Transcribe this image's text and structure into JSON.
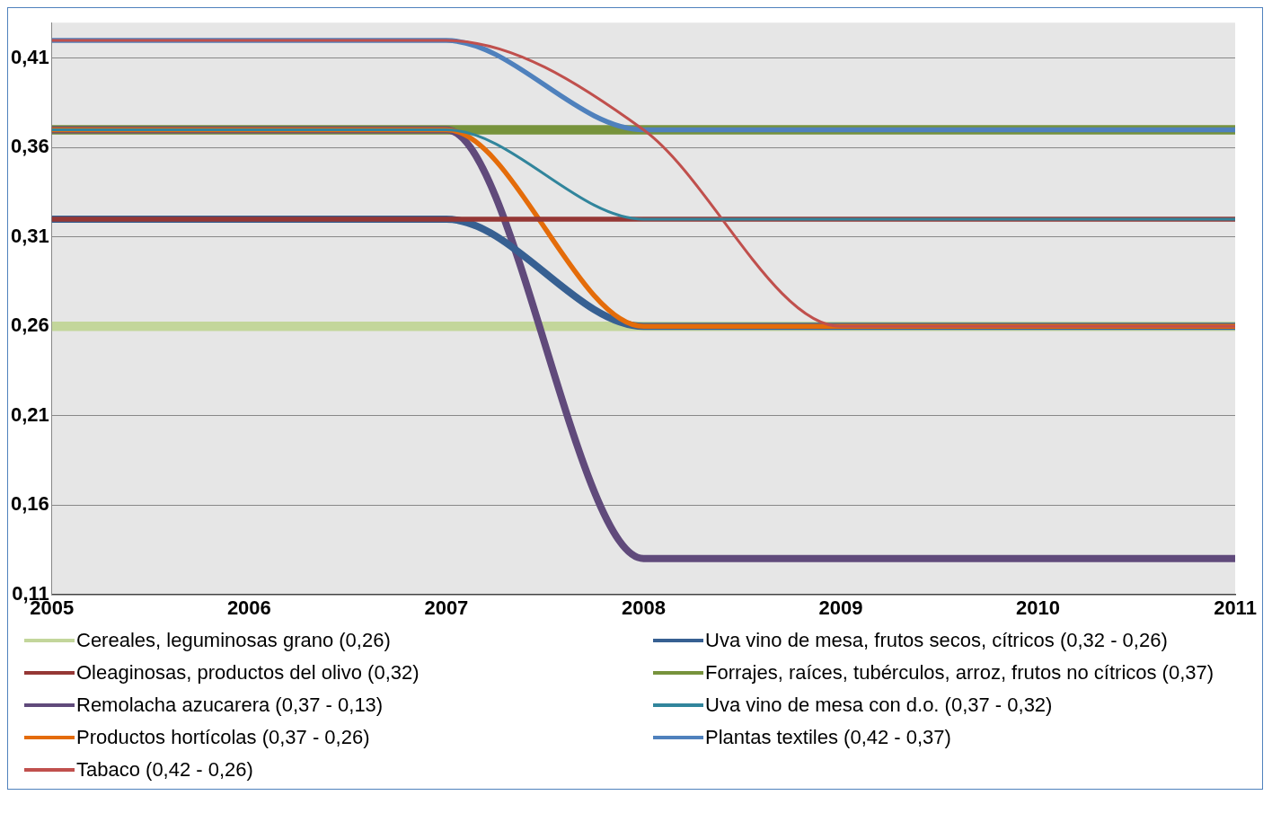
{
  "chart_data": {
    "type": "line",
    "x": [
      2005,
      2006,
      2007,
      2008,
      2009,
      2010,
      2011
    ],
    "xlim": [
      2005,
      2011
    ],
    "xticks": [
      2005,
      2006,
      2007,
      2008,
      2009,
      2010,
      2011
    ],
    "ylim": [
      0.11,
      0.43
    ],
    "yticks": [
      {
        "value": 0.11,
        "label": "0,11"
      },
      {
        "value": 0.16,
        "label": "0,16"
      },
      {
        "value": 0.21,
        "label": "0,21"
      },
      {
        "value": 0.26,
        "label": "0,26"
      },
      {
        "value": 0.31,
        "label": "0,31"
      },
      {
        "value": 0.36,
        "label": "0,36"
      },
      {
        "value": 0.41,
        "label": "0,41"
      }
    ],
    "grid": "y",
    "legend": "bottom",
    "marker": "none",
    "line_style": "solid",
    "series": [
      {
        "name": "Cereales, leguminosas grano (0,26)",
        "color": "#c3d69b",
        "values": [
          0.26,
          0.26,
          0.26,
          0.26,
          0.26,
          0.26,
          0.26
        ]
      },
      {
        "name": "Uva vino de mesa, frutos secos, cítricos (0,32 - 0,26)",
        "color": "#376092",
        "values": [
          0.32,
          0.32,
          0.32,
          0.26,
          0.26,
          0.26,
          0.26
        ]
      },
      {
        "name": "Oleaginosas, productos del olivo (0,32)",
        "color": "#953735",
        "values": [
          0.32,
          0.32,
          0.32,
          0.32,
          0.32,
          0.32,
          0.32
        ]
      },
      {
        "name": "Forrajes, raíces, tubérculos, arroz, frutos no cítricos (0,37)",
        "color": "#77933c",
        "values": [
          0.37,
          0.37,
          0.37,
          0.37,
          0.37,
          0.37,
          0.37
        ]
      },
      {
        "name": "Remolacha azucarera (0,37 - 0,13)",
        "color": "#604a7b",
        "values": [
          0.37,
          0.37,
          0.37,
          0.13,
          0.13,
          0.13,
          0.13
        ]
      },
      {
        "name": "Uva vino de mesa con d.o. (0,37 - 0,32)",
        "color": "#31859c",
        "values": [
          0.37,
          0.37,
          0.37,
          0.32,
          0.32,
          0.32,
          0.32
        ]
      },
      {
        "name": "Productos hortícolas (0,37 - 0,26)",
        "color": "#e46c0a",
        "values": [
          0.37,
          0.37,
          0.37,
          0.26,
          0.26,
          0.26,
          0.26
        ]
      },
      {
        "name": "Plantas textiles (0,42 - 0,37)",
        "color": "#4f81bd",
        "values": [
          0.42,
          0.42,
          0.42,
          0.37,
          0.37,
          0.37,
          0.37
        ]
      },
      {
        "name": "Tabaco (0,42 - 0,26)",
        "color": "#c0504d",
        "values": [
          0.42,
          0.42,
          0.42,
          0.37,
          0.26,
          0.26,
          0.26
        ]
      }
    ]
  }
}
